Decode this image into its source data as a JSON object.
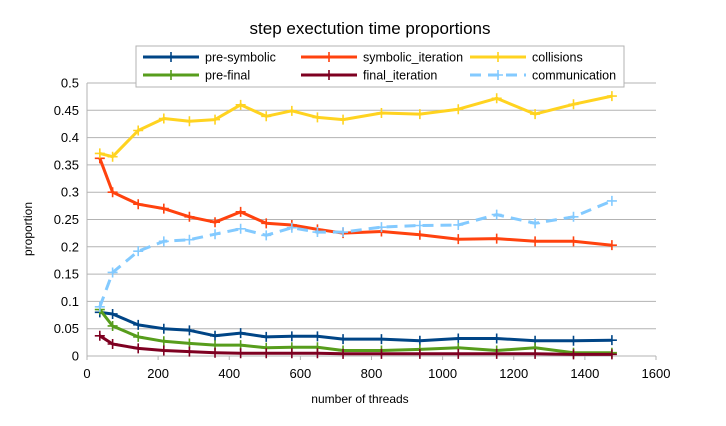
{
  "chart_data": {
    "type": "line",
    "title": "step exectution time proportions",
    "xlabel": "number of threads",
    "ylabel": "proportion",
    "xlim": [
      0,
      1600
    ],
    "ylim": [
      0,
      0.5
    ],
    "xticks": [
      0,
      200,
      400,
      600,
      800,
      1000,
      1200,
      1400,
      1600
    ],
    "yticks": [
      0,
      0.05,
      0.1,
      0.15,
      0.2,
      0.25,
      0.3,
      0.35,
      0.4,
      0.45,
      0.5
    ],
    "ytick_labels": [
      "0",
      "0.05",
      "0.1",
      "0.15",
      "0.2",
      "0.25",
      "0.3",
      "0.35",
      "0.4",
      "0.45",
      "0.5"
    ],
    "grid": "horizontal",
    "legend_position": "top",
    "x": [
      36,
      72,
      144,
      216,
      288,
      360,
      432,
      504,
      576,
      648,
      720,
      828,
      936,
      1044,
      1152,
      1260,
      1368,
      1476
    ],
    "series": [
      {
        "name": "pre-symbolic",
        "color": "#004586",
        "dashed": false,
        "values": [
          0.08,
          0.077,
          0.057,
          0.05,
          0.047,
          0.037,
          0.042,
          0.035,
          0.036,
          0.036,
          0.031,
          0.031,
          0.028,
          0.032,
          0.032,
          0.028,
          0.028,
          0.029
        ]
      },
      {
        "name": "symbolic_iteration",
        "color": "#ff420e",
        "dashed": false,
        "values": [
          0.362,
          0.3,
          0.278,
          0.27,
          0.255,
          0.245,
          0.264,
          0.243,
          0.24,
          0.232,
          0.225,
          0.228,
          0.222,
          0.214,
          0.215,
          0.21,
          0.21,
          0.203
        ]
      },
      {
        "name": "collisions",
        "color": "#ffd320",
        "dashed": false,
        "values": [
          0.371,
          0.365,
          0.413,
          0.435,
          0.43,
          0.433,
          0.46,
          0.439,
          0.449,
          0.437,
          0.433,
          0.445,
          0.443,
          0.452,
          0.472,
          0.443,
          0.461,
          0.476
        ]
      },
      {
        "name": "pre-final",
        "color": "#579d1c",
        "dashed": false,
        "values": [
          0.085,
          0.055,
          0.035,
          0.027,
          0.023,
          0.02,
          0.02,
          0.015,
          0.016,
          0.016,
          0.01,
          0.01,
          0.012,
          0.015,
          0.01,
          0.015,
          0.006,
          0.006
        ]
      },
      {
        "name": "final_iteration",
        "color": "#7e0021",
        "dashed": false,
        "values": [
          0.037,
          0.022,
          0.014,
          0.01,
          0.008,
          0.006,
          0.005,
          0.005,
          0.005,
          0.005,
          0.004,
          0.004,
          0.004,
          0.004,
          0.004,
          0.004,
          0.003,
          0.003
        ]
      },
      {
        "name": "communication",
        "color": "#83caff",
        "dashed": true,
        "values": [
          0.09,
          0.153,
          0.192,
          0.21,
          0.213,
          0.223,
          0.233,
          0.221,
          0.235,
          0.227,
          0.227,
          0.236,
          0.239,
          0.24,
          0.259,
          0.243,
          0.255,
          0.284
        ]
      }
    ]
  }
}
